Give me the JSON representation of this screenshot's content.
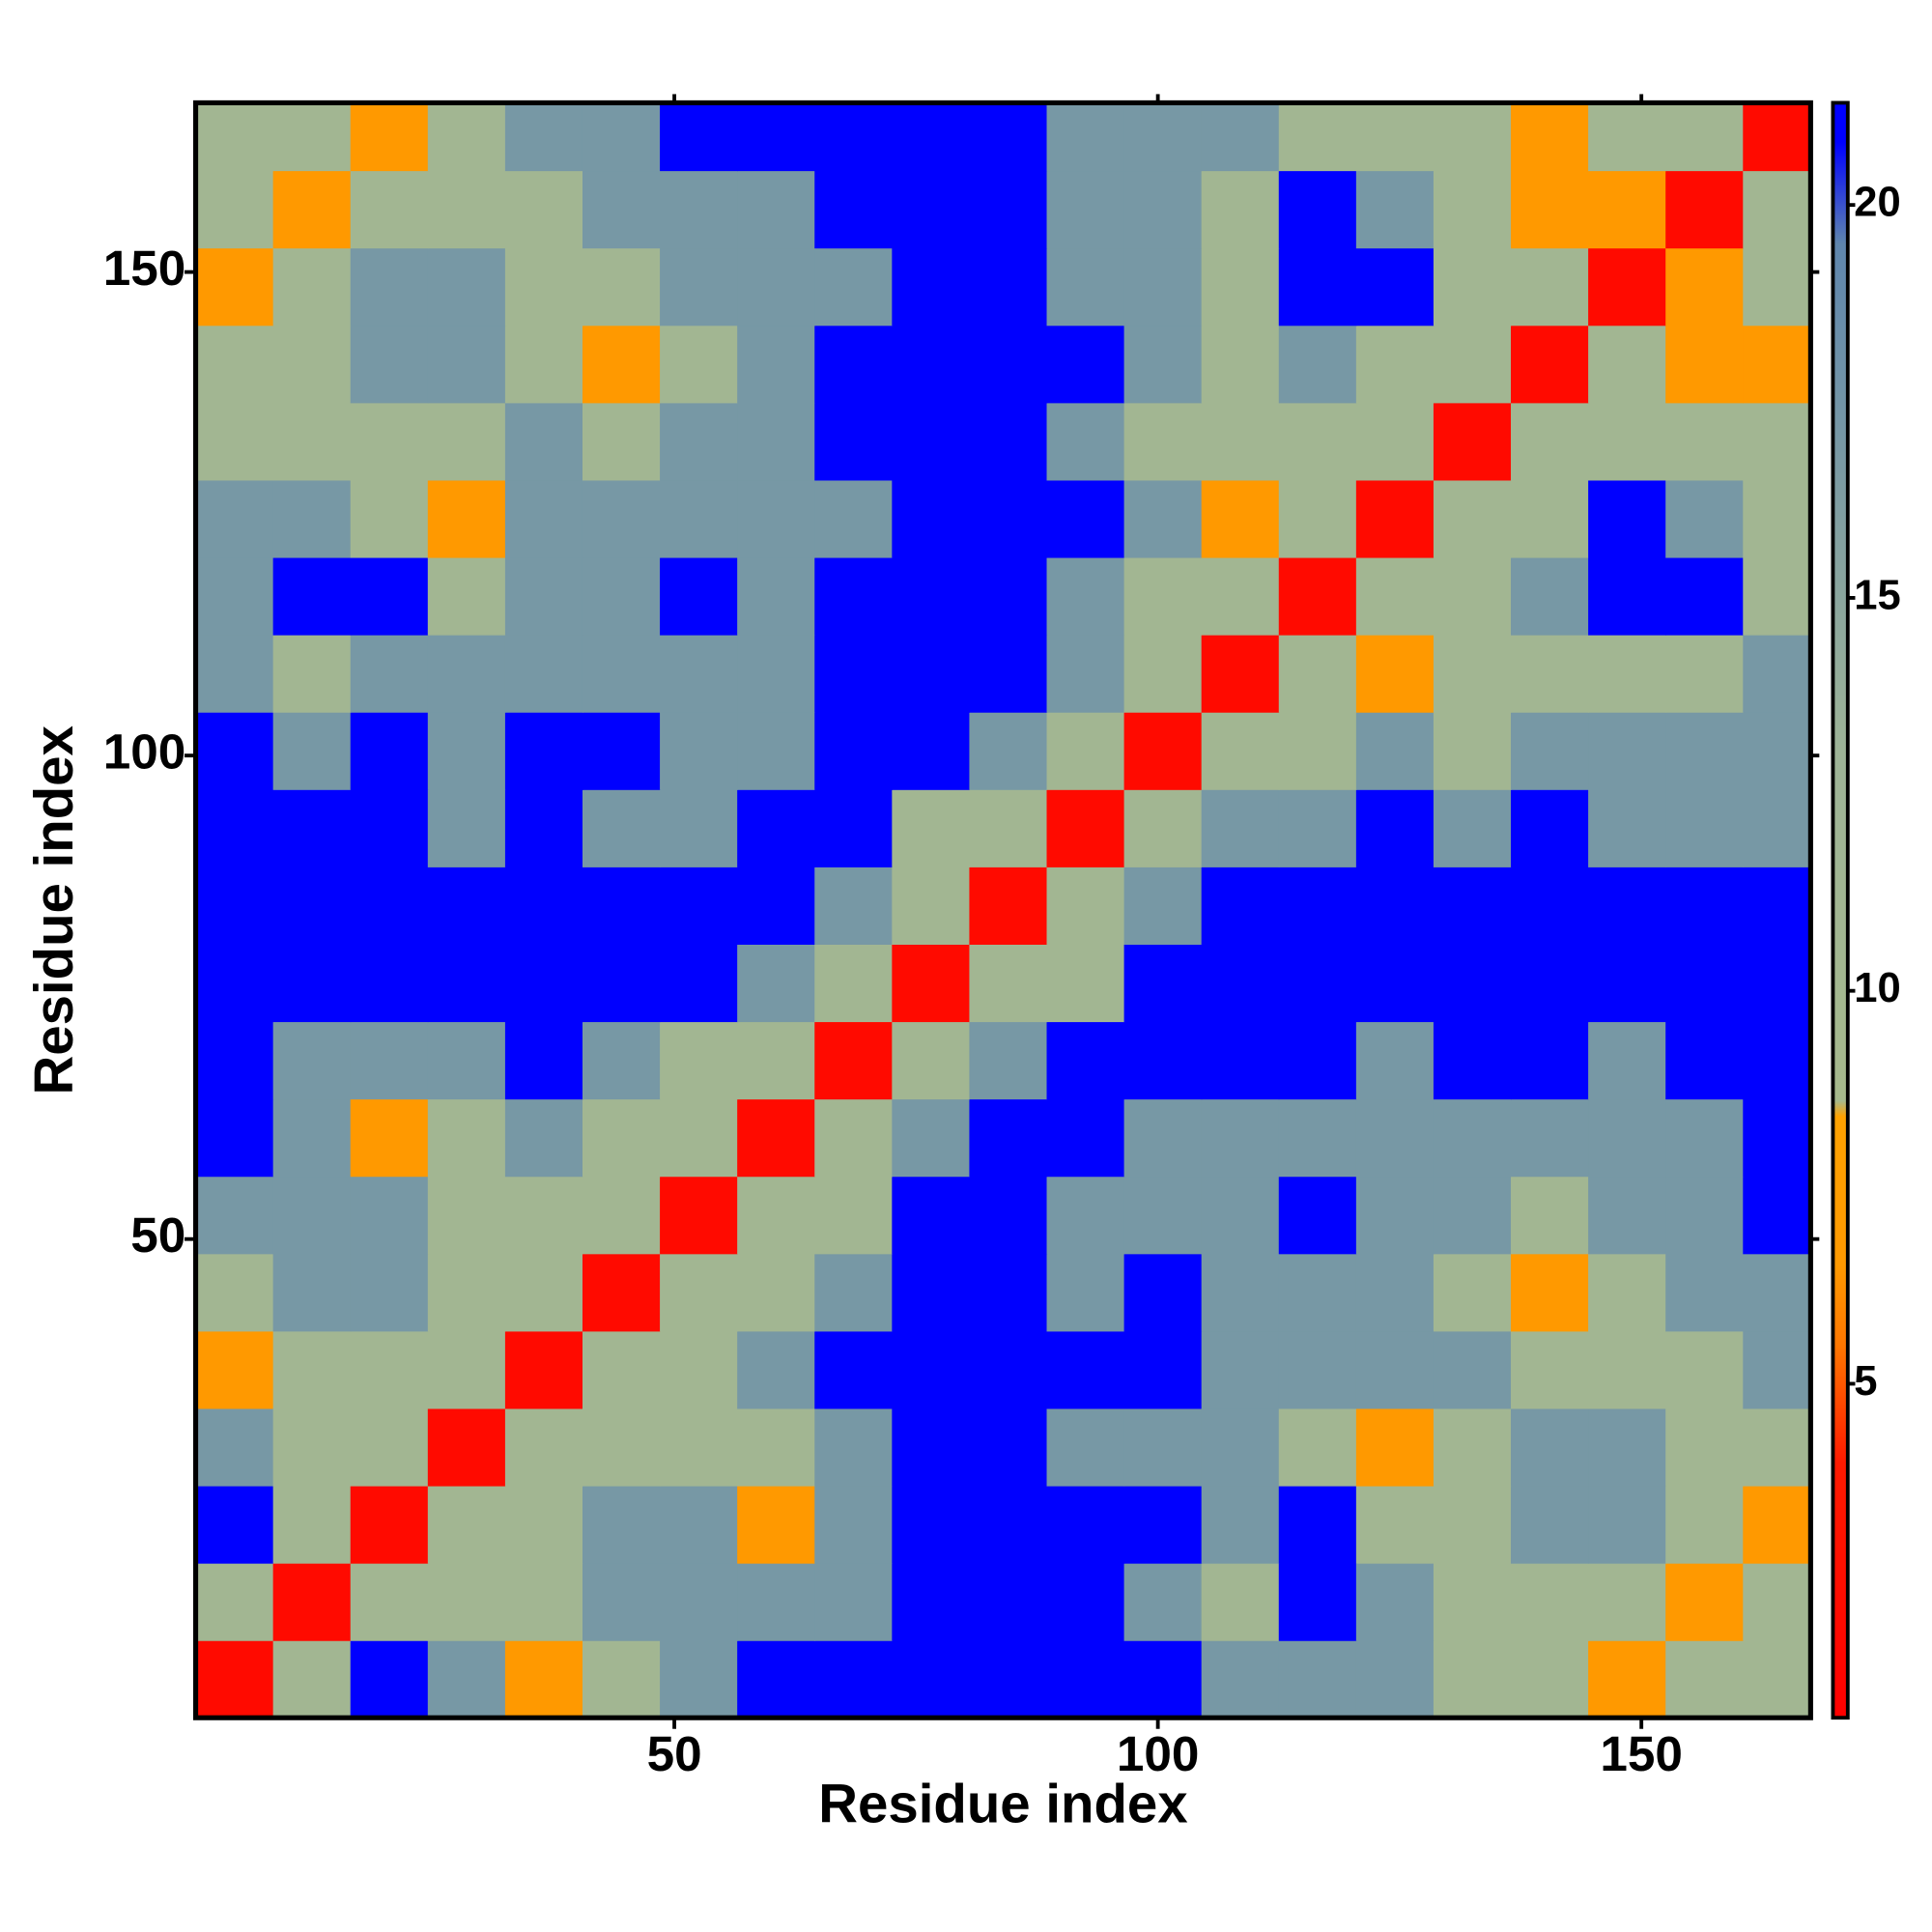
{
  "chart_data": {
    "type": "heatmap",
    "xlabel": "Residue index",
    "ylabel": "Residue index",
    "x_bins": [
      0.5,
      8.5,
      16.5,
      24.5,
      32.5,
      40.5,
      48.5,
      56.5,
      64.5,
      72.5,
      80.5,
      88.5,
      96.5,
      104.5,
      112.5,
      120.5,
      128.5,
      136.5,
      144.5,
      152.5,
      160.5,
      167.5
    ],
    "y_bins": [
      0.5,
      8.5,
      16.5,
      24.5,
      32.5,
      40.5,
      48.5,
      56.5,
      64.5,
      72.5,
      80.5,
      88.5,
      96.5,
      104.5,
      112.5,
      120.5,
      128.5,
      136.5,
      144.5,
      152.5,
      160.5,
      167.5
    ],
    "xlim": [
      0.5,
      167.5
    ],
    "ylim": [
      0.5,
      167.5
    ],
    "xticks": [
      50,
      100,
      150
    ],
    "yticks": [
      50,
      100,
      150
    ],
    "values": [
      [
        2,
        11,
        21,
        17,
        6.5,
        11,
        17,
        21,
        21,
        21,
        21,
        21,
        21,
        17,
        17,
        17,
        11,
        11,
        6.5,
        11,
        11
      ],
      [
        11,
        2,
        11,
        11,
        11,
        17,
        17,
        17,
        17,
        21,
        21,
        21,
        17,
        11,
        21,
        17,
        11,
        11,
        11,
        6.5,
        11
      ],
      [
        21,
        11,
        2,
        11,
        11,
        17,
        17,
        6.5,
        17,
        21,
        21,
        21,
        21,
        17,
        21,
        11,
        11,
        17,
        17,
        11,
        6.5
      ],
      [
        17,
        11,
        11,
        2,
        11,
        11,
        11,
        11,
        17,
        21,
        21,
        17,
        17,
        17,
        11,
        6.5,
        11,
        17,
        17,
        11,
        11
      ],
      [
        6.5,
        11,
        11,
        11,
        2,
        11,
        11,
        17,
        21,
        21,
        21,
        21,
        21,
        17,
        17,
        17,
        17,
        11,
        11,
        11,
        17
      ],
      [
        11,
        17,
        17,
        11,
        11,
        2,
        11,
        11,
        17,
        21,
        21,
        17,
        21,
        17,
        17,
        17,
        11,
        6.5,
        11,
        17,
        17
      ],
      [
        17,
        17,
        17,
        11,
        11,
        11,
        2,
        11,
        11,
        21,
        21,
        17,
        17,
        17,
        21,
        17,
        17,
        11,
        17,
        17,
        21
      ],
      [
        21,
        17,
        6.5,
        11,
        17,
        11,
        11,
        2,
        11,
        17,
        21,
        21,
        17,
        17,
        17,
        17,
        17,
        17,
        17,
        17,
        21
      ],
      [
        21,
        17,
        17,
        17,
        21,
        17,
        11,
        11,
        2,
        11,
        17,
        21,
        21,
        21,
        21,
        17,
        21,
        21,
        17,
        21,
        21
      ],
      [
        21,
        21,
        21,
        21,
        21,
        21,
        21,
        17,
        11,
        2,
        11,
        11,
        21,
        21,
        21,
        21,
        21,
        21,
        21,
        21,
        21
      ],
      [
        21,
        21,
        21,
        21,
        21,
        21,
        21,
        21,
        17,
        11,
        2,
        11,
        17,
        21,
        21,
        21,
        21,
        21,
        21,
        21,
        21
      ],
      [
        21,
        21,
        21,
        17,
        21,
        17,
        17,
        21,
        21,
        11,
        11,
        2,
        11,
        17,
        17,
        21,
        17,
        21,
        17,
        17,
        17
      ],
      [
        21,
        17,
        21,
        17,
        21,
        21,
        17,
        17,
        21,
        21,
        17,
        11,
        2,
        11,
        11,
        17,
        11,
        17,
        17,
        17,
        17
      ],
      [
        17,
        11,
        17,
        17,
        17,
        17,
        17,
        17,
        21,
        21,
        21,
        17,
        11,
        2,
        11,
        6.5,
        11,
        11,
        11,
        11,
        17
      ],
      [
        17,
        21,
        21,
        11,
        17,
        17,
        21,
        17,
        21,
        21,
        21,
        17,
        11,
        11,
        2,
        11,
        11,
        17,
        21,
        21,
        11
      ],
      [
        17,
        17,
        11,
        6.5,
        17,
        17,
        17,
        17,
        17,
        21,
        21,
        21,
        17,
        6.5,
        11,
        2,
        11,
        11,
        21,
        17,
        11
      ],
      [
        11,
        11,
        11,
        11,
        17,
        11,
        17,
        17,
        21,
        21,
        21,
        17,
        11,
        11,
        11,
        11,
        2,
        11,
        11,
        11,
        11
      ],
      [
        11,
        11,
        17,
        17,
        11,
        6.5,
        11,
        17,
        21,
        21,
        21,
        21,
        17,
        11,
        17,
        11,
        11,
        2,
        11,
        6.5,
        6.5
      ],
      [
        6.5,
        11,
        17,
        17,
        11,
        11,
        17,
        17,
        17,
        21,
        21,
        17,
        17,
        11,
        21,
        21,
        11,
        11,
        2,
        6.5,
        11
      ],
      [
        11,
        6.5,
        11,
        11,
        11,
        17,
        17,
        17,
        21,
        21,
        21,
        17,
        17,
        11,
        21,
        17,
        11,
        6.5,
        6.5,
        2,
        11
      ],
      [
        11,
        11,
        6.5,
        11,
        17,
        17,
        21,
        21,
        21,
        21,
        21,
        17,
        17,
        17,
        11,
        11,
        11,
        6.5,
        11,
        11,
        2
      ]
    ],
    "colorbar": {
      "lim": [
        0.75,
        21.3
      ],
      "ticks": [
        5,
        10,
        15,
        20
      ]
    },
    "colormap": [
      {
        "value": 0.75,
        "color": "#ff0000"
      },
      {
        "value": 4,
        "color": "#ff1a00"
      },
      {
        "value": 5.5,
        "color": "#ff7700"
      },
      {
        "value": 6.5,
        "color": "#ff9900"
      },
      {
        "value": 8.4,
        "color": "#ffa200"
      },
      {
        "value": 8.6,
        "color": "#a6b98c"
      },
      {
        "value": 13,
        "color": "#9eb497"
      },
      {
        "value": 19.5,
        "color": "#5f86ad"
      },
      {
        "value": 20.8,
        "color": "#0000ff"
      },
      {
        "value": 21.3,
        "color": "#0000ff"
      }
    ]
  }
}
